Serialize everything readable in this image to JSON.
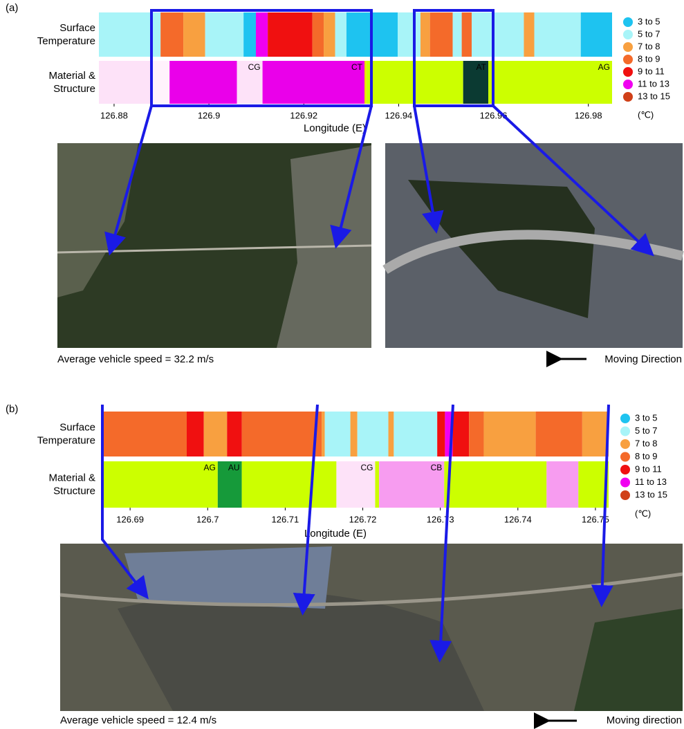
{
  "chart_data": [
    {
      "type": "strip",
      "panel_label": "(a)",
      "row_labels": [
        "Surface Temperature",
        "Material & Structure"
      ],
      "xlabel": "Longitude (E)",
      "xlim": [
        126.8768,
        126.985
      ],
      "xticks": [
        126.88,
        126.9,
        126.92,
        126.94,
        126.96,
        126.98
      ],
      "legend": {
        "series": [
          {
            "name": "3 to 5",
            "color": "#1ec3f0"
          },
          {
            "name": "5 to 7",
            "color": "#a8f4f8"
          },
          {
            "name": "7 to 8",
            "color": "#f8a040"
          },
          {
            "name": "8 to 9",
            "color": "#f46a2a"
          },
          {
            "name": "9 to 11",
            "color": "#f01010"
          },
          {
            "name": "11 to 13",
            "color": "#f000f0"
          },
          {
            "name": "13 to 15",
            "color": "#d04018"
          }
        ],
        "unit": "(℃)"
      },
      "temperature": {
        "edges": [
          126.8768,
          126.8898,
          126.8946,
          126.8992,
          126.9073,
          126.9099,
          126.9124,
          126.9218,
          126.9242,
          126.9266,
          126.929,
          126.9398,
          126.9446,
          126.9466,
          126.9514,
          126.9533,
          126.9554,
          126.9664,
          126.9686,
          126.9784,
          126.985
        ],
        "colors": [
          "#a8f4f8",
          "#f46a2a",
          "#f8a040",
          "#a8f4f8",
          "#1ec3f0",
          "#f000f0",
          "#f01010",
          "#f46a2a",
          "#f8a040",
          "#a8f4f8",
          "#1ec3f0",
          "#a8f4f8",
          "#f8a040",
          "#f46a2a",
          "#a8f4f8",
          "#f46a2a",
          "#a8f4f8",
          "#f8a040",
          "#a8f4f8",
          "#1ec3f0"
        ]
      },
      "material": {
        "edges": [
          126.8768,
          126.8877,
          126.8917,
          126.9059,
          126.9113,
          126.9328,
          126.9332,
          126.9536,
          126.9589,
          126.985
        ],
        "colors": [
          "#fde2f8",
          "#fff2fc",
          "#ea00ea",
          "#fde2f8",
          "#ea00ea",
          "#e8e000",
          "#ccff00",
          "#0b3a32",
          "#ccff00"
        ],
        "labels": [
          null,
          null,
          null,
          "CG",
          "CT",
          null,
          null,
          "AT",
          "AG"
        ]
      },
      "caption": "Average vehicle speed = 32.2 m/s",
      "direction": "Moving Direction"
    },
    {
      "type": "strip",
      "panel_label": "(b)",
      "row_labels": [
        "Surface Temperature",
        "Material & Structure"
      ],
      "xlabel": "Longitude (E)",
      "xlim": [
        126.6866,
        126.7517
      ],
      "xticks": [
        126.69,
        126.7,
        126.71,
        126.72,
        126.73,
        126.74,
        126.75
      ],
      "legend": {
        "series": [
          {
            "name": "3 to 5",
            "color": "#1ec3f0"
          },
          {
            "name": "5 to 7",
            "color": "#a8f4f8"
          },
          {
            "name": "7 to 8",
            "color": "#f8a040"
          },
          {
            "name": "8 to 9",
            "color": "#f46a2a"
          },
          {
            "name": "9 to 11",
            "color": "#f01010"
          },
          {
            "name": "11 to 13",
            "color": "#f000f0"
          },
          {
            "name": "13 to 15",
            "color": "#d04018"
          }
        ],
        "unit": "(℃)"
      },
      "temperature": {
        "edges": [
          126.6866,
          126.6973,
          126.6995,
          126.7025,
          126.7044,
          126.7147,
          126.7151,
          126.7184,
          126.7193,
          126.7233,
          126.724,
          126.7296,
          126.7306,
          126.7316,
          126.7337,
          126.7356,
          126.7423,
          126.7483,
          126.7517
        ],
        "colors": [
          "#f46a2a",
          "#f01010",
          "#f8a040",
          "#f01010",
          "#f46a2a",
          "#f8a040",
          "#a8f4f8",
          "#f8a040",
          "#a8f4f8",
          "#f8a040",
          "#a8f4f8",
          "#f01010",
          "#f000f0",
          "#f01010",
          "#f46a2a",
          "#f8a040",
          "#f46a2a",
          "#f8a040"
        ]
      },
      "material": {
        "edges": [
          126.6866,
          126.7013,
          126.7044,
          126.7166,
          126.7216,
          126.7221,
          126.7305,
          126.7437,
          126.7478,
          126.7517
        ],
        "colors": [
          "#ccff00",
          "#169a3a",
          "#ccff00",
          "#fde2f8",
          "#ccff00",
          "#f79cf0",
          "#ccff00",
          "#f79cf0",
          "#ccff00"
        ],
        "labels": [
          "AG",
          "AU",
          null,
          "CG",
          null,
          "CB",
          null,
          null,
          null
        ]
      },
      "caption": "Average vehicle speed = 12.4 m/s",
      "direction": "Moving direction"
    }
  ]
}
